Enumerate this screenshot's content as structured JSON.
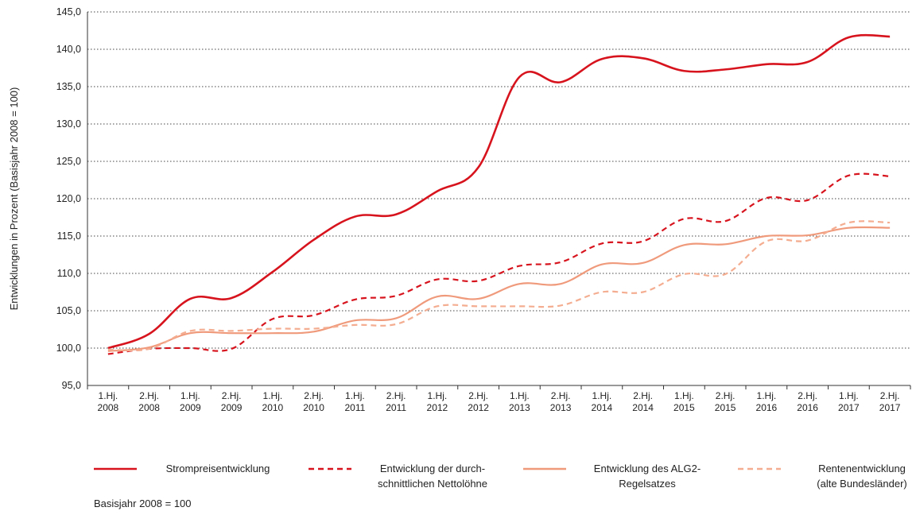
{
  "chart_data": {
    "type": "line",
    "y_label": "Entwicklungen in Prozent (Basisjahr 2008 = 100)",
    "note": "Basisjahr 2008 = 100",
    "categories": [
      "1.Hj.\n2008",
      "2.Hj.\n2008",
      "1.Hj.\n2009",
      "2.Hj.\n2009",
      "1.Hj.\n2010",
      "2.Hj.\n2010",
      "1.Hj.\n2011",
      "2.Hj.\n2011",
      "1.Hj.\n2012",
      "2.Hj.\n2012",
      "1.Hj.\n2013",
      "2.Hj.\n2013",
      "1.Hj.\n2014",
      "2.Hj.\n2014",
      "1.Hj.\n2015",
      "2.Hj.\n2015",
      "1.Hj.\n2016",
      "2.Hj.\n2016",
      "1.Hj.\n2017",
      "2.Hj.\n2017"
    ],
    "series": [
      {
        "name": "Strompreisentwicklung",
        "color": "#d7141e",
        "dashed": false,
        "values": [
          100.0,
          101.9,
          106.6,
          106.7,
          110.2,
          114.5,
          117.6,
          117.9,
          121.0,
          124.2,
          136.3,
          135.6,
          138.7,
          138.8,
          137.1,
          137.3,
          138.0,
          138.3,
          141.6,
          141.7
        ]
      },
      {
        "name": "Entwicklung der durch-\nschnittlichen Nettolöhne",
        "color": "#d7141e",
        "dashed": true,
        "values": [
          99.2,
          99.9,
          100.0,
          99.9,
          103.9,
          104.4,
          106.5,
          107.0,
          109.2,
          109.0,
          111.0,
          111.5,
          114.0,
          114.3,
          117.3,
          117.0,
          120.1,
          119.8,
          123.1,
          123.0
        ]
      },
      {
        "name": "Entwicklung des ALG2-\nRegelsatzes",
        "color": "#f09a7c",
        "dashed": false,
        "values": [
          99.6,
          100.1,
          102.0,
          102.0,
          102.0,
          102.2,
          103.7,
          104.0,
          106.9,
          106.6,
          108.6,
          108.6,
          111.2,
          111.4,
          113.8,
          113.9,
          115.0,
          115.1,
          116.1,
          116.1
        ]
      },
      {
        "name": "Rentenentwicklung\n(alte Bundesländer)",
        "color": "#f4ad90",
        "dashed": true,
        "values": [
          99.8,
          99.9,
          102.3,
          102.3,
          102.6,
          102.6,
          103.1,
          103.2,
          105.6,
          105.6,
          105.6,
          105.7,
          107.5,
          107.5,
          109.9,
          109.9,
          114.3,
          114.4,
          116.8,
          116.8
        ]
      }
    ],
    "ylim": [
      95,
      145
    ],
    "yticks": [
      {
        "value": 95,
        "label": "95,0"
      },
      {
        "value": 100,
        "label": "100,0"
      },
      {
        "value": 105,
        "label": "105,0"
      },
      {
        "value": 110,
        "label": "110,0"
      },
      {
        "value": 115,
        "label": "115,0"
      },
      {
        "value": 120,
        "label": "120,0"
      },
      {
        "value": 125,
        "label": "125,0"
      },
      {
        "value": 130,
        "label": "130,0"
      },
      {
        "value": 135,
        "label": "135,0"
      },
      {
        "value": 140,
        "label": "140,0"
      },
      {
        "value": 145,
        "label": "145,0"
      }
    ],
    "grid": true
  }
}
